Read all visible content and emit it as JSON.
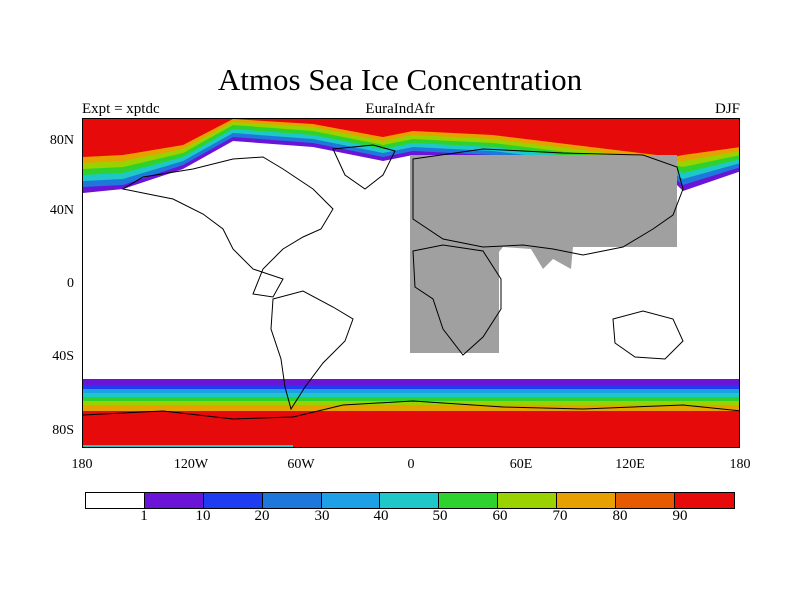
{
  "title": "Atmos Sea Ice Concentration",
  "subtitle_left": "Expt = xptdc",
  "subtitle_center": "EuraIndAfr",
  "subtitle_right": "DJF",
  "lat_ticks": [
    "80N",
    "40N",
    "0",
    "40S",
    "80S"
  ],
  "lon_ticks": [
    "180",
    "120W",
    "60W",
    "0",
    "60E",
    "120E",
    "180"
  ],
  "colorbar": {
    "labels": [
      "1",
      "10",
      "20",
      "30",
      "40",
      "50",
      "60",
      "70",
      "80",
      "90"
    ],
    "colors": [
      "#ffffff",
      "#6a14d8",
      "#1e3cf0",
      "#1e78dc",
      "#1ea0e6",
      "#1ec8c8",
      "#2ed22e",
      "#9ad200",
      "#e6a000",
      "#e65a00",
      "#e60a0a"
    ]
  },
  "masked_region_color": "#a0a0a0",
  "land_color": "#ffffff",
  "coastline_color": "#000000"
}
